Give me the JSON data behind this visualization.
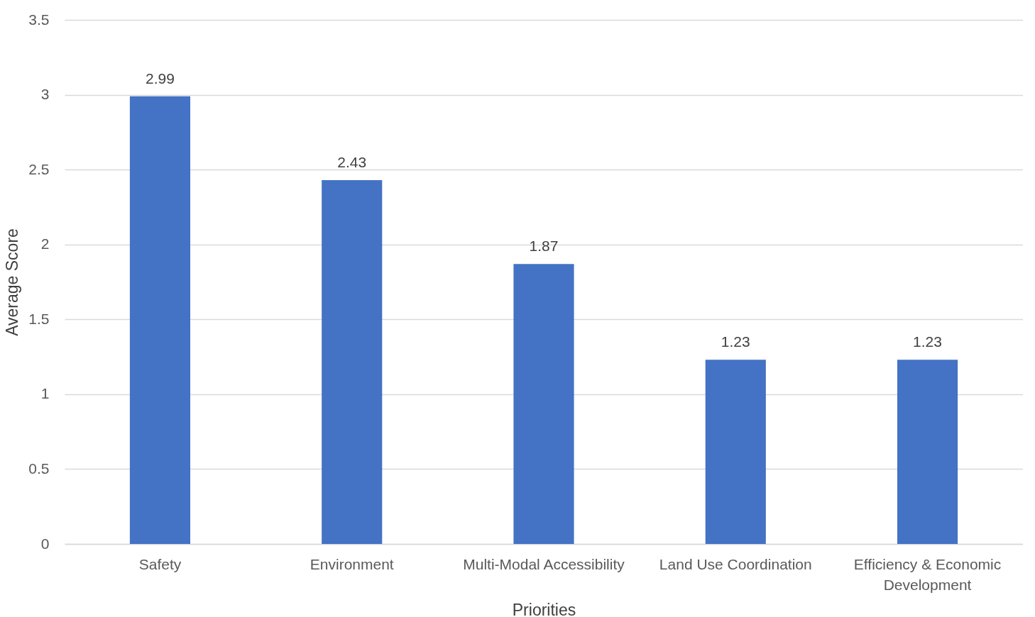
{
  "chart_data": {
    "type": "bar",
    "xlabel": "Priorities",
    "ylabel": "Average Score",
    "categories": [
      "Safety",
      "Environment",
      "Multi-Modal Accessibility",
      "Land Use Coordination",
      "Efficiency & Economic Development"
    ],
    "values": [
      2.99,
      2.43,
      1.87,
      1.23,
      1.23
    ],
    "color": "#4472c4",
    "ylim": [
      0,
      3.5
    ],
    "yticks": [
      0,
      0.5,
      1,
      1.5,
      2,
      2.5,
      3,
      3.5
    ],
    "grid": "y",
    "data_labels": true
  }
}
